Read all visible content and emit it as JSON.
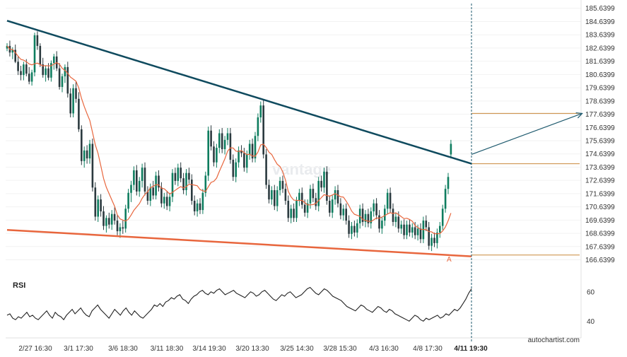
{
  "chart_data": {
    "type": "candlestick",
    "title": "",
    "y_ticks": [
      "185.6399",
      "184.6399",
      "183.6399",
      "182.6399",
      "181.6399",
      "180.6399",
      "179.6399",
      "178.6399",
      "177.6399",
      "176.6399",
      "175.6399",
      "174.6399",
      "173.6399",
      "172.6399",
      "171.6399",
      "170.6399",
      "169.6399",
      "168.6399",
      "167.6399",
      "166.6399"
    ],
    "ylim": [
      166.0,
      186.0
    ],
    "x_ticks": [
      "2/27 16:30",
      "3/1 17:30",
      "3/6 18:30",
      "3/11 18:30",
      "3/14 19:30",
      "3/20 13:30",
      "3/25 14:30",
      "3/28 15:30",
      "4/3 16:30",
      "4/8 17:30",
      "4/11 19:30"
    ],
    "highlighted_x_tick": "4/11 19:30",
    "upper_trendline": {
      "start": [
        0,
        184.7
      ],
      "end": [
        172,
        173.9
      ]
    },
    "lower_trendline": {
      "start": [
        0,
        168.9
      ],
      "end": [
        172,
        166.9
      ]
    },
    "levels": [
      177.7,
      173.9,
      167.0
    ],
    "projection": {
      "from": [
        172,
        174.6
      ],
      "to": [
        213,
        177.7
      ]
    },
    "point_label": "A",
    "candles_ohlc": [
      [
        182.6,
        183.0,
        182.4,
        182.8
      ],
      [
        182.8,
        183.2,
        182.0,
        182.3
      ],
      [
        182.3,
        182.7,
        181.8,
        182.5
      ],
      [
        182.5,
        182.9,
        181.5,
        181.6
      ],
      [
        181.6,
        182.0,
        180.6,
        180.9
      ],
      [
        180.9,
        181.3,
        180.2,
        180.6
      ],
      [
        180.6,
        181.6,
        180.2,
        181.4
      ],
      [
        181.4,
        181.8,
        180.5,
        180.7
      ],
      [
        180.7,
        181.2,
        179.9,
        180.1
      ],
      [
        180.1,
        181.0,
        179.8,
        180.8
      ],
      [
        180.8,
        183.8,
        180.5,
        183.6
      ],
      [
        183.6,
        183.9,
        182.5,
        182.8
      ],
      [
        182.8,
        183.0,
        181.2,
        181.4
      ],
      [
        181.4,
        181.9,
        180.4,
        180.6
      ],
      [
        180.6,
        181.3,
        180.1,
        181.1
      ],
      [
        181.1,
        181.5,
        180.2,
        180.4
      ],
      [
        180.4,
        181.7,
        180.1,
        181.5
      ],
      [
        181.5,
        182.2,
        181.0,
        182.0
      ],
      [
        182.0,
        182.4,
        180.9,
        181.1
      ],
      [
        181.1,
        181.5,
        179.5,
        179.7
      ],
      [
        179.7,
        180.7,
        179.3,
        180.5
      ],
      [
        180.5,
        181.4,
        180.0,
        181.2
      ],
      [
        181.2,
        181.6,
        178.9,
        179.2
      ],
      [
        179.2,
        179.6,
        177.4,
        177.7
      ],
      [
        177.7,
        179.9,
        177.4,
        179.6
      ],
      [
        179.6,
        180.1,
        178.5,
        178.8
      ],
      [
        178.8,
        179.3,
        176.3,
        176.5
      ],
      [
        176.5,
        176.8,
        173.8,
        174.1
      ],
      [
        174.1,
        175.2,
        173.6,
        174.9
      ],
      [
        174.9,
        175.3,
        173.9,
        174.3
      ],
      [
        174.3,
        175.7,
        173.9,
        175.4
      ],
      [
        175.4,
        175.8,
        171.8,
        172.1
      ],
      [
        172.1,
        172.5,
        169.6,
        169.9
      ],
      [
        169.9,
        171.5,
        169.5,
        171.2
      ],
      [
        171.2,
        171.6,
        169.9,
        170.3
      ],
      [
        170.3,
        170.7,
        168.9,
        169.2
      ],
      [
        169.2,
        170.0,
        168.7,
        169.8
      ],
      [
        169.8,
        170.2,
        169.0,
        169.3
      ],
      [
        169.3,
        170.4,
        168.9,
        170.1
      ],
      [
        170.1,
        170.6,
        169.3,
        169.6
      ],
      [
        169.6,
        170.0,
        168.5,
        168.8
      ],
      [
        168.8,
        169.4,
        168.3,
        169.1
      ],
      [
        169.1,
        169.6,
        168.6,
        169.0
      ],
      [
        169.0,
        170.8,
        168.7,
        170.5
      ],
      [
        170.5,
        172.0,
        170.2,
        171.7
      ],
      [
        171.7,
        172.6,
        171.0,
        172.3
      ],
      [
        172.3,
        173.7,
        171.9,
        173.4
      ],
      [
        173.4,
        173.8,
        171.5,
        171.8
      ],
      [
        171.8,
        172.9,
        171.4,
        172.6
      ],
      [
        172.6,
        173.9,
        172.1,
        173.6
      ],
      [
        173.6,
        174.0,
        171.5,
        171.8
      ],
      [
        171.8,
        172.2,
        170.8,
        171.1
      ],
      [
        171.1,
        172.4,
        170.7,
        172.1
      ],
      [
        172.1,
        172.6,
        171.2,
        171.5
      ],
      [
        171.5,
        173.3,
        171.2,
        173.0
      ],
      [
        173.0,
        173.4,
        171.8,
        172.1
      ],
      [
        172.1,
        172.5,
        170.6,
        170.9
      ],
      [
        170.9,
        171.7,
        170.5,
        171.4
      ],
      [
        171.4,
        171.8,
        170.4,
        170.7
      ],
      [
        170.7,
        171.7,
        170.3,
        171.4
      ],
      [
        171.4,
        173.5,
        171.0,
        173.2
      ],
      [
        173.2,
        173.6,
        172.3,
        172.6
      ],
      [
        172.6,
        173.9,
        172.2,
        173.6
      ],
      [
        173.6,
        174.0,
        172.5,
        172.8
      ],
      [
        172.8,
        173.2,
        171.6,
        171.9
      ],
      [
        171.9,
        173.5,
        171.5,
        173.2
      ],
      [
        173.2,
        173.6,
        172.4,
        172.7
      ],
      [
        172.7,
        173.1,
        170.8,
        171.1
      ],
      [
        171.1,
        171.5,
        170.0,
        170.3
      ],
      [
        170.3,
        171.2,
        169.9,
        170.9
      ],
      [
        170.9,
        171.3,
        170.1,
        170.4
      ],
      [
        170.4,
        172.0,
        170.1,
        171.7
      ],
      [
        171.7,
        173.3,
        171.4,
        173.0
      ],
      [
        173.0,
        176.7,
        172.6,
        176.4
      ],
      [
        176.4,
        176.8,
        174.9,
        175.2
      ],
      [
        175.2,
        175.6,
        173.7,
        174.0
      ],
      [
        174.0,
        175.4,
        173.6,
        175.1
      ],
      [
        175.1,
        176.5,
        174.7,
        176.2
      ],
      [
        176.2,
        176.6,
        174.7,
        175.0
      ],
      [
        175.0,
        176.0,
        174.6,
        175.7
      ],
      [
        175.7,
        176.6,
        175.3,
        176.2
      ],
      [
        176.2,
        176.6,
        173.9,
        174.2
      ],
      [
        174.2,
        174.6,
        172.6,
        172.9
      ],
      [
        172.9,
        174.3,
        172.5,
        174.0
      ],
      [
        174.0,
        175.2,
        173.6,
        174.9
      ],
      [
        174.9,
        175.3,
        174.4,
        174.7
      ],
      [
        174.7,
        175.1,
        173.3,
        173.6
      ],
      [
        173.6,
        174.9,
        173.2,
        174.6
      ],
      [
        174.6,
        175.7,
        174.2,
        175.4
      ],
      [
        175.4,
        175.8,
        174.0,
        174.3
      ],
      [
        174.3,
        176.3,
        174.0,
        176.0
      ],
      [
        176.0,
        177.7,
        175.6,
        177.4
      ],
      [
        177.4,
        178.6,
        177.0,
        178.3
      ],
      [
        178.3,
        178.7,
        174.3,
        174.6
      ],
      [
        174.6,
        175.0,
        172.0,
        172.3
      ],
      [
        172.3,
        172.7,
        170.9,
        171.2
      ],
      [
        171.2,
        172.2,
        170.8,
        171.9
      ],
      [
        171.9,
        172.3,
        170.4,
        170.7
      ],
      [
        170.7,
        172.2,
        170.3,
        171.9
      ],
      [
        171.9,
        172.9,
        171.5,
        172.6
      ],
      [
        172.6,
        173.0,
        171.7,
        172.0
      ],
      [
        172.0,
        172.4,
        170.8,
        171.1
      ],
      [
        171.1,
        171.5,
        169.5,
        169.8
      ],
      [
        169.8,
        170.8,
        169.4,
        170.5
      ],
      [
        170.5,
        170.9,
        169.5,
        169.8
      ],
      [
        169.8,
        171.4,
        169.5,
        171.1
      ],
      [
        171.1,
        172.0,
        170.7,
        171.7
      ],
      [
        171.7,
        172.1,
        170.5,
        170.8
      ],
      [
        170.8,
        171.2,
        169.9,
        170.2
      ],
      [
        170.2,
        171.2,
        169.8,
        170.9
      ],
      [
        170.9,
        172.3,
        170.5,
        172.0
      ],
      [
        172.0,
        172.4,
        171.0,
        171.3
      ],
      [
        171.3,
        171.7,
        170.4,
        170.7
      ],
      [
        170.7,
        172.9,
        170.3,
        172.6
      ],
      [
        172.6,
        173.0,
        171.8,
        172.1
      ],
      [
        172.1,
        173.6,
        171.7,
        173.3
      ],
      [
        173.3,
        173.7,
        170.8,
        171.1
      ],
      [
        171.1,
        171.5,
        169.9,
        170.2
      ],
      [
        170.2,
        171.5,
        169.8,
        171.2
      ],
      [
        171.2,
        172.2,
        170.8,
        171.9
      ],
      [
        171.9,
        172.3,
        170.6,
        170.9
      ],
      [
        170.9,
        171.3,
        169.7,
        170.0
      ],
      [
        170.0,
        170.8,
        169.6,
        170.5
      ],
      [
        170.5,
        170.9,
        169.3,
        169.6
      ],
      [
        169.6,
        170.0,
        168.3,
        168.6
      ],
      [
        168.6,
        169.5,
        168.2,
        169.2
      ],
      [
        169.2,
        169.6,
        168.4,
        168.7
      ],
      [
        168.7,
        169.7,
        168.3,
        169.4
      ],
      [
        169.4,
        170.8,
        169.0,
        170.5
      ],
      [
        170.5,
        170.9,
        169.2,
        169.5
      ],
      [
        169.5,
        170.4,
        169.1,
        170.1
      ],
      [
        170.1,
        170.5,
        169.1,
        169.4
      ],
      [
        169.4,
        170.6,
        169.0,
        170.3
      ],
      [
        170.3,
        171.2,
        169.9,
        170.9
      ],
      [
        170.9,
        171.3,
        169.7,
        170.0
      ],
      [
        170.0,
        170.4,
        168.7,
        169.0
      ],
      [
        169.0,
        169.9,
        168.6,
        169.6
      ],
      [
        169.6,
        170.8,
        169.2,
        170.5
      ],
      [
        170.5,
        172.0,
        170.1,
        171.7
      ],
      [
        171.7,
        172.1,
        170.2,
        170.5
      ],
      [
        170.5,
        170.9,
        169.2,
        169.5
      ],
      [
        169.5,
        170.2,
        169.1,
        169.9
      ],
      [
        169.9,
        170.3,
        168.7,
        169.0
      ],
      [
        169.0,
        169.6,
        168.6,
        169.3
      ],
      [
        169.3,
        169.7,
        168.2,
        168.5
      ],
      [
        168.5,
        169.6,
        168.2,
        169.3
      ],
      [
        169.3,
        169.7,
        168.4,
        168.7
      ],
      [
        168.7,
        169.4,
        168.3,
        169.1
      ],
      [
        169.1,
        169.5,
        168.2,
        168.5
      ],
      [
        168.5,
        169.3,
        168.1,
        169.0
      ],
      [
        169.0,
        169.4,
        167.9,
        168.2
      ],
      [
        168.2,
        169.9,
        167.9,
        169.6
      ],
      [
        169.6,
        170.0,
        168.8,
        169.1
      ],
      [
        169.1,
        169.5,
        167.4,
        167.7
      ],
      [
        167.7,
        168.6,
        167.3,
        168.3
      ],
      [
        168.3,
        168.7,
        167.6,
        167.9
      ],
      [
        167.9,
        169.0,
        167.5,
        168.7
      ],
      [
        168.7,
        169.5,
        168.3,
        169.2
      ],
      [
        169.2,
        170.8,
        168.9,
        170.5
      ],
      [
        170.5,
        172.3,
        170.2,
        172.0
      ],
      [
        172.0,
        173.2,
        171.6,
        172.9
      ],
      [
        174.6,
        175.7,
        174.3,
        175.4
      ]
    ],
    "rsi": {
      "label": "RSI",
      "ticks": [
        "60",
        "40"
      ],
      "ylim": [
        30,
        70
      ],
      "values": [
        44,
        45,
        42,
        41,
        43,
        42,
        44,
        46,
        43,
        44,
        42,
        41,
        43,
        45,
        47,
        44,
        42,
        46,
        44,
        43,
        41,
        44,
        46,
        48,
        45,
        47,
        49,
        46,
        44,
        43,
        47,
        49,
        51,
        48,
        46,
        44,
        42,
        45,
        48,
        46,
        44,
        47,
        49,
        46,
        44,
        47,
        45,
        43,
        42,
        44,
        46,
        48,
        51,
        50,
        52,
        50,
        53,
        54,
        56,
        55,
        57,
        58,
        55,
        54,
        52,
        55,
        57,
        58,
        60,
        61,
        59,
        58,
        60,
        59,
        61,
        62,
        60,
        58,
        59,
        60,
        61,
        59,
        58,
        57,
        56,
        58,
        60,
        59,
        57,
        58,
        60,
        61,
        59,
        57,
        55,
        54,
        56,
        58,
        57,
        59,
        60,
        58,
        56,
        57,
        58,
        60,
        62,
        63,
        61,
        59,
        58,
        60,
        62,
        61,
        59,
        57,
        56,
        55,
        54,
        52,
        50,
        49,
        48,
        47,
        49,
        51,
        50,
        48,
        47,
        46,
        48,
        50,
        49,
        47,
        46,
        48,
        47,
        45,
        44,
        43,
        42,
        41,
        40,
        42,
        44,
        43,
        41,
        40,
        42,
        41,
        42,
        43,
        44,
        42,
        43,
        45,
        44,
        46,
        48,
        47,
        49,
        52,
        55,
        59,
        62
      ]
    }
  },
  "credit": "autochartist.com",
  "watermark": "vantage",
  "colors": {
    "bullish": "#0e7d5f",
    "bearish": "#2b3a3f",
    "moving_average": "#e8663d",
    "upper_trendline": "#0f4a5e",
    "lower_trendline": "#e8663d",
    "level_lines": "#c9883a",
    "projection": "#1e5a6e",
    "rsi_line": "#222222"
  }
}
